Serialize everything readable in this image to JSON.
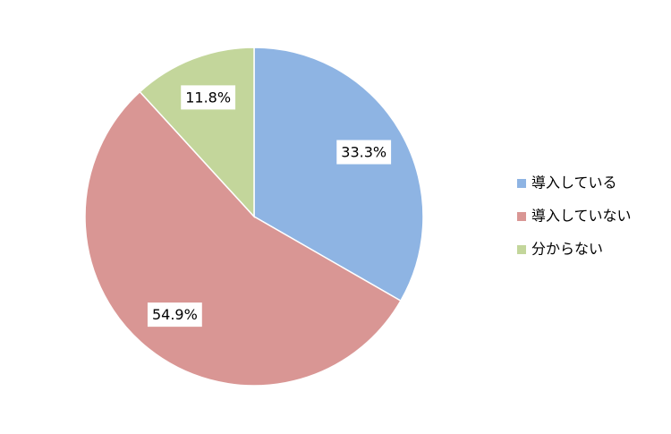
{
  "chart_data": {
    "type": "pie",
    "categories": [
      "導入している",
      "導入していない",
      "分からない"
    ],
    "values": [
      33.3,
      54.9,
      11.8
    ],
    "value_labels": [
      "33.3%",
      "54.9%",
      "11.8%"
    ],
    "colors": [
      "#8eb4e3",
      "#d99694",
      "#c3d69b"
    ],
    "legend": "right"
  }
}
